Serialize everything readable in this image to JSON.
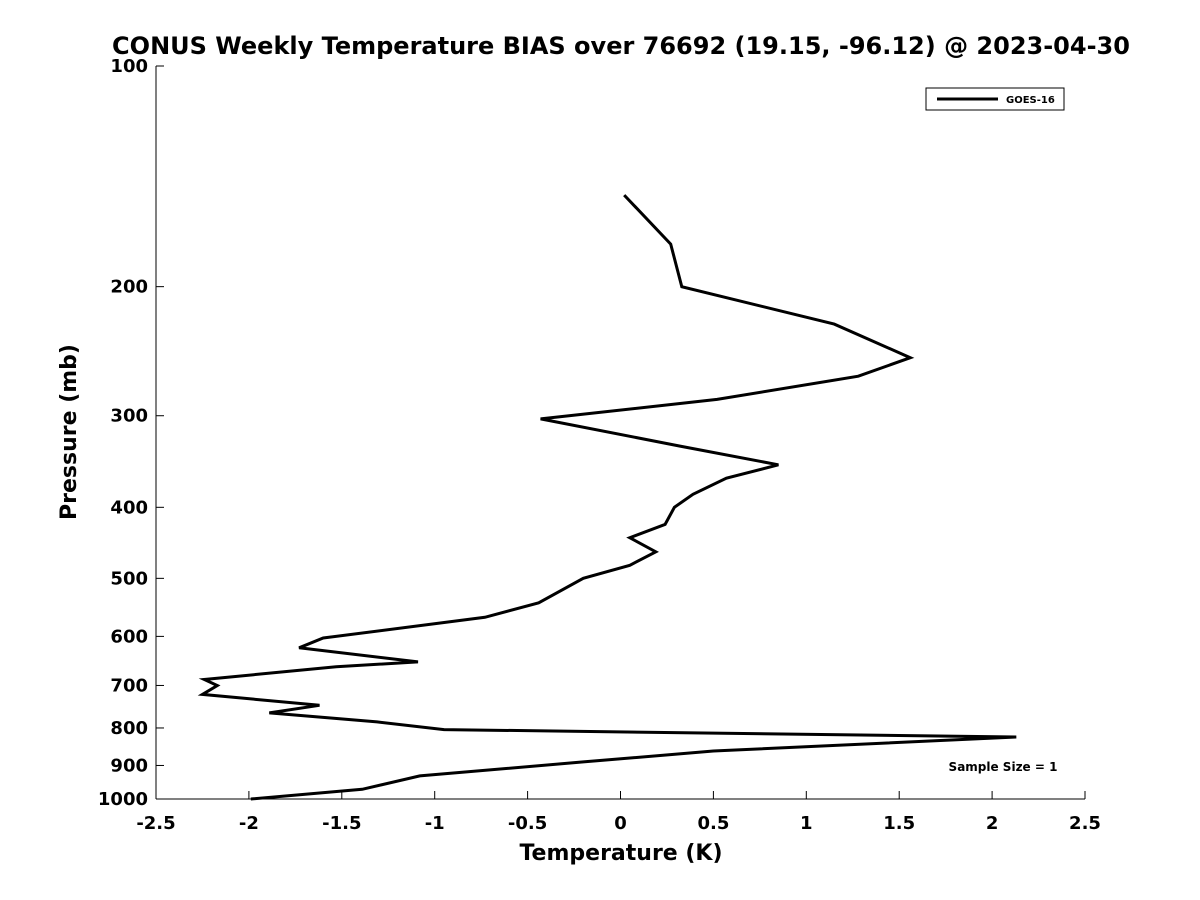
{
  "chart_data": {
    "type": "line",
    "title": "CONUS Weekly Temperature BIAS over 76692 (19.15, -96.12) @ 2023-04-30",
    "xlabel": "Temperature (K)",
    "ylabel": "Pressure (mb)",
    "xlim": [
      -2.5,
      2.5
    ],
    "ylim": [
      1000,
      100
    ],
    "y_scale": "log",
    "y_inverted": true,
    "grid": false,
    "x_ticks": [
      -2.5,
      -2,
      -1.5,
      -1,
      -0.5,
      0,
      0.5,
      1,
      1.5,
      2,
      2.5
    ],
    "x_tick_labels": [
      "-2.5",
      "-2",
      "-1.5",
      "-1",
      "-0.5",
      "0",
      "0.5",
      "1",
      "1.5",
      "2",
      "2.5"
    ],
    "y_ticks": [
      100,
      200,
      300,
      400,
      500,
      600,
      700,
      800,
      900,
      1000
    ],
    "y_tick_labels": [
      "100",
      "200",
      "300",
      "400",
      "500",
      "600",
      "700",
      "800",
      "900",
      "1000"
    ],
    "legend": {
      "placement": "top-right",
      "entries": [
        "GOES-16"
      ]
    },
    "annotation": "Sample Size = 1",
    "series": [
      {
        "name": "GOES-16",
        "color": "#000000",
        "x": [
          0.02,
          0.27,
          0.33,
          1.15,
          1.56,
          1.28,
          0.52,
          -0.43,
          0.32,
          0.85,
          0.57,
          0.39,
          0.29,
          0.24,
          0.05,
          0.19,
          0.05,
          -0.2,
          -0.44,
          -0.73,
          -1.6,
          -1.73,
          -1.09,
          -1.53,
          -2.24,
          -2.17,
          -2.25,
          -1.62,
          -1.89,
          -1.31,
          -0.95,
          2.13,
          0.5,
          -0.2,
          -1.08,
          -1.39,
          -1.99
        ],
        "y": [
          150,
          175,
          200,
          225,
          250,
          265,
          285,
          303,
          330,
          350,
          365,
          384,
          400,
          422,
          440,
          460,
          480,
          500,
          540,
          565,
          603,
          622,
          650,
          660,
          687,
          700,
          720,
          745,
          763,
          785,
          804,
          823,
          860,
          890,
          930,
          970,
          1000
        ]
      }
    ]
  }
}
